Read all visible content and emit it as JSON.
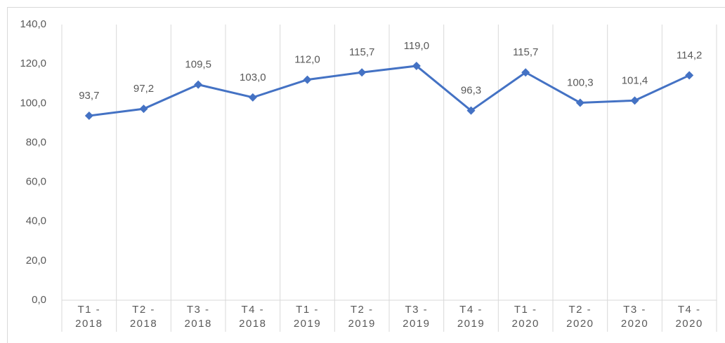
{
  "chart_data": {
    "type": "line",
    "categories": [
      "T1 - 2018",
      "T2 - 2018",
      "T3 - 2018",
      "T4 - 2018",
      "T1 - 2019",
      "T2 - 2019",
      "T3 - 2019",
      "T4 - 2019",
      "T1 - 2020",
      "T2 - 2020",
      "T3 - 2020",
      "T4 - 2020"
    ],
    "values": [
      93.7,
      97.2,
      109.5,
      103.0,
      112.0,
      115.7,
      119.0,
      96.3,
      115.7,
      100.3,
      101.4,
      114.2
    ],
    "value_labels": [
      "93,7",
      "97,2",
      "109,5",
      "103,0",
      "112,0",
      "115,7",
      "119,0",
      "96,3",
      "115,7",
      "100,3",
      "101,4",
      "114,2"
    ],
    "color": "#4472c4",
    "ylim": [
      0,
      140
    ],
    "yticks": [
      {
        "value": 0,
        "label": "0,0"
      },
      {
        "value": 20,
        "label": "20,0"
      },
      {
        "value": 40,
        "label": "40,0"
      },
      {
        "value": 60,
        "label": "60,0"
      },
      {
        "value": 80,
        "label": "80,0"
      },
      {
        "value": 100,
        "label": "100,0"
      },
      {
        "value": 120,
        "label": "120,0"
      },
      {
        "value": 140,
        "label": "140,0"
      }
    ]
  }
}
